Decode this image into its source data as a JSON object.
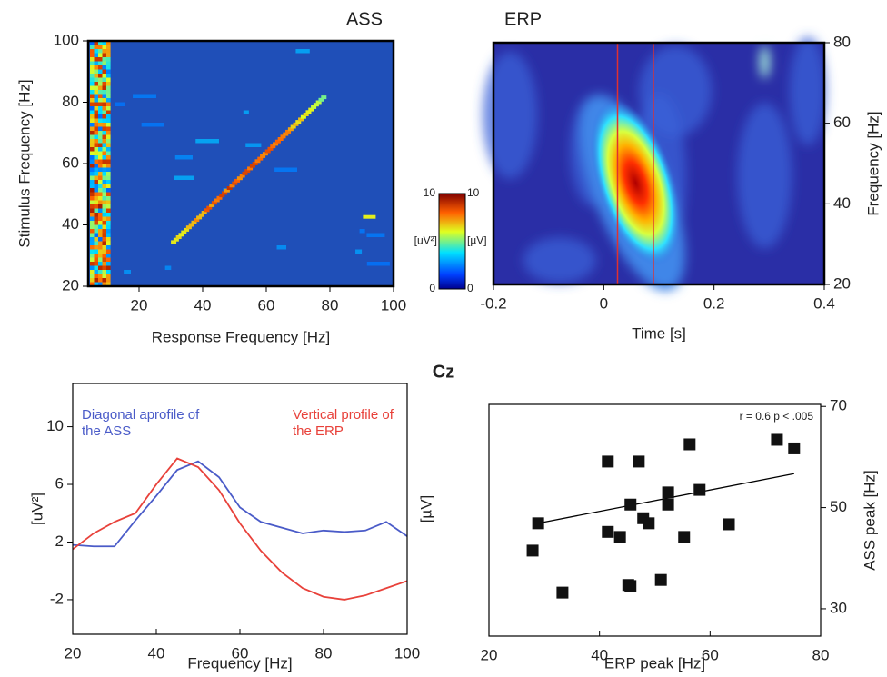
{
  "suptitle": "Cz",
  "chart_data": [
    {
      "type": "heatmap",
      "title": "ASS",
      "title_color": "#3b3ba6",
      "xlabel": "Response Frequency [Hz]",
      "ylabel": "Stimulus Frequency [Hz]",
      "xlim": [
        4,
        100
      ],
      "ylim": [
        20,
        100
      ],
      "xticks": [
        20,
        40,
        60,
        80,
        100
      ],
      "yticks": [
        20,
        40,
        60,
        80,
        100
      ],
      "colorbar": {
        "lim": [
          0,
          10
        ],
        "ticks": [
          0,
          10
        ],
        "labels": [
          "[uV²]",
          "[µV]"
        ],
        "colors": [
          "#e03030",
          "#3a3aa0"
        ]
      }
    },
    {
      "type": "heatmap",
      "title": "ERP",
      "title_color": "#e03030",
      "xlabel": "Time [s]",
      "ylabel": "Frequency [Hz]",
      "xlim": [
        -0.2,
        0.4
      ],
      "ylim": [
        20,
        80
      ],
      "xticks": [
        -0.2,
        0,
        0.2,
        0.4
      ],
      "yticks": [
        20,
        40,
        60,
        80
      ],
      "markers": [
        0.025,
        0.09
      ],
      "marker_color": "#e03030"
    },
    {
      "type": "line",
      "xlabel": "Frequency [Hz]",
      "ylabel": "[uV²]",
      "ylabel_color": "#4a5bc8",
      "y2label": "[µV]",
      "y2label_color": "#e8413a",
      "xlim": [
        20,
        100
      ],
      "ylim": [
        -4.4,
        13
      ],
      "xticks": [
        20,
        40,
        60,
        80,
        100
      ],
      "yticks": [
        -2,
        2,
        6,
        10
      ],
      "x": [
        20,
        25,
        30,
        35,
        40,
        45,
        50,
        55,
        60,
        65,
        70,
        75,
        80,
        85,
        90,
        95,
        100
      ],
      "series": [
        {
          "name": "Diagonal aprofile of the ASS",
          "color": "#4a5bc8",
          "values": [
            1.8,
            1.7,
            1.7,
            3.5,
            5.2,
            7.0,
            7.6,
            6.5,
            4.4,
            3.4,
            3.0,
            2.6,
            2.8,
            2.7,
            2.8,
            3.4,
            2.4
          ]
        },
        {
          "name": "Vertical profile of the ERP",
          "color": "#e8413a",
          "values": [
            1.5,
            2.6,
            3.4,
            4.0,
            6.0,
            7.8,
            7.2,
            5.6,
            3.3,
            1.4,
            -0.1,
            -1.2,
            -1.8,
            -2.0,
            -1.7,
            -1.2,
            -0.7
          ]
        }
      ]
    },
    {
      "type": "scatter",
      "xlabel": "ERP peak [Hz]",
      "xlabel_color": "#e03030",
      "ylabel": "ASS peak [Hz]",
      "ylabel_color": "#3b3ba6",
      "annotation": "r = 0.6 p < .005",
      "xlim": [
        20,
        80
      ],
      "ylim": [
        24.6,
        70.4
      ],
      "xticks": [
        20,
        40,
        60,
        80
      ],
      "yticks": [
        30,
        50,
        70
      ],
      "color": "#111111",
      "x": [
        27.9,
        28.9,
        33.3,
        41.5,
        41.5,
        43.7,
        45.2,
        45.6,
        45.6,
        47.1,
        47.9,
        48.9,
        51.1,
        52.4,
        52.4,
        55.3,
        56.3,
        58.1,
        63.4,
        72.1,
        75.2
      ],
      "y": [
        41.5,
        46.9,
        33.2,
        59.1,
        45.2,
        44.2,
        34.7,
        50.6,
        34.5,
        59.1,
        47.9,
        46.9,
        35.7,
        53.0,
        50.6,
        44.2,
        62.5,
        53.5,
        46.7,
        63.4,
        61.7
      ],
      "fit": {
        "x": [
          27.9,
          75.2
        ],
        "y": [
          46.7,
          56.7
        ]
      }
    }
  ]
}
